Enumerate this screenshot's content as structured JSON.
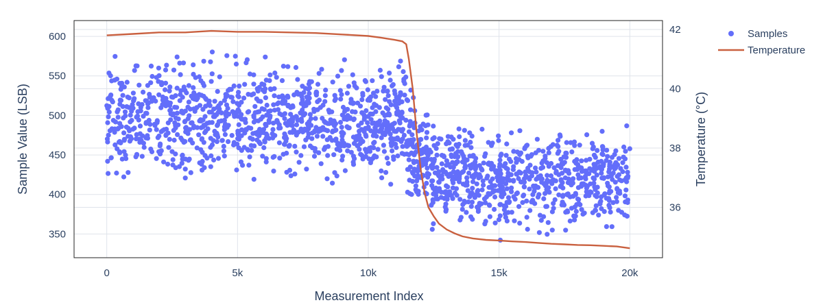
{
  "chart_data": {
    "type": "scatter",
    "title": "",
    "xlabel": "Measurement Index",
    "ylabel": "Sample Value (LSB)",
    "y2label": "Temperature (°C)",
    "xlim": [
      -1250,
      21250
    ],
    "ylim": [
      320,
      620
    ],
    "y2lim": [
      34.3,
      42.3
    ],
    "x_ticks": [
      0,
      5000,
      10000,
      15000,
      20000
    ],
    "x_tick_labels": [
      "0",
      "5k",
      "10k",
      "15k",
      "20k"
    ],
    "y_ticks": [
      350,
      400,
      450,
      500,
      550,
      600
    ],
    "y_tick_labels": [
      "350",
      "400",
      "450",
      "500",
      "550",
      "600"
    ],
    "y2_ticks": [
      36,
      38,
      40,
      42
    ],
    "y2_tick_labels": [
      "36",
      "38",
      "40",
      "42"
    ],
    "grid": true,
    "legend_position": "top-right",
    "colors": {
      "samples": "#636efa",
      "temperature": "#c9603f",
      "grid": "#dfe3ea",
      "frame": "#222222",
      "text": "#2a3f5f"
    },
    "series": [
      {
        "name": "Samples",
        "kind": "scatter",
        "axis": "left",
        "segments": [
          {
            "x_start": 0,
            "x_end": 11500,
            "mean": 495,
            "spread": 32,
            "count": 1050,
            "min": 405,
            "max": 600
          },
          {
            "x_start": 11500,
            "x_end": 12300,
            "mean": 450,
            "spread": 30,
            "count": 110,
            "min": 400,
            "max": 540
          },
          {
            "x_start": 12300,
            "x_end": 20000,
            "mean": 420,
            "spread": 27,
            "count": 700,
            "min": 338,
            "max": 490
          }
        ]
      },
      {
        "name": "Temperature",
        "kind": "line",
        "axis": "right",
        "x": [
          0,
          1000,
          2000,
          3000,
          4000,
          5000,
          6000,
          7000,
          8000,
          9000,
          10000,
          10500,
          11000,
          11300,
          11450,
          11550,
          11700,
          11850,
          12000,
          12150,
          12300,
          12500,
          12700,
          13000,
          13300,
          13600,
          14000,
          14500,
          15000,
          15500,
          16000,
          16500,
          17000,
          17500,
          18000,
          18500,
          19000,
          19500,
          20000
        ],
        "y": [
          41.8,
          41.85,
          41.9,
          41.9,
          41.95,
          41.92,
          41.92,
          41.9,
          41.88,
          41.83,
          41.78,
          41.72,
          41.65,
          41.6,
          41.5,
          41.0,
          40.0,
          38.5,
          37.3,
          36.5,
          36.0,
          35.7,
          35.45,
          35.25,
          35.12,
          35.02,
          34.95,
          34.9,
          34.88,
          34.85,
          34.83,
          34.8,
          34.77,
          34.75,
          34.73,
          34.72,
          34.7,
          34.68,
          34.62
        ]
      }
    ]
  }
}
